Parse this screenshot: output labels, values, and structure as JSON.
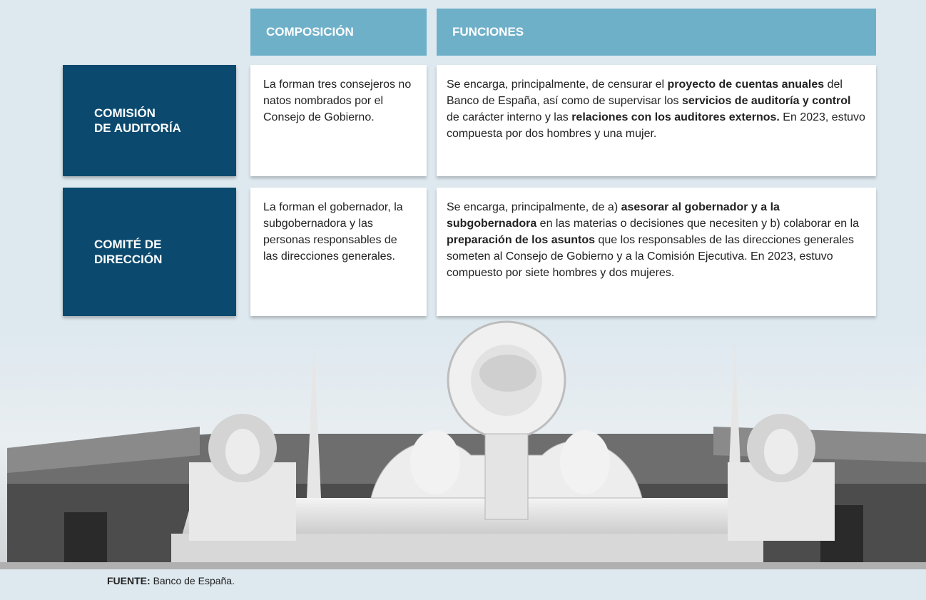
{
  "header": {
    "composition": "COMPOSICIÓN",
    "functions": "FUNCIONES"
  },
  "rows": [
    {
      "label": [
        "COMISIÓN",
        "DE AUDITORÍA"
      ],
      "composition": "La forman tres consejeros no natos nombrados por el Consejo de Gobierno.",
      "functions": [
        {
          "text": "Se encarga, principalmente, de censurar el ",
          "bold": false
        },
        {
          "text": "proyecto de cuentas anuales",
          "bold": true
        },
        {
          "text": " del Banco de España, así como de supervisar los ",
          "bold": false
        },
        {
          "text": "servicios de auditoría y control",
          "bold": true
        },
        {
          "text": " de carácter interno y las ",
          "bold": false
        },
        {
          "text": "relaciones con los auditores externos.",
          "bold": true
        },
        {
          "text": " En 2023, estuvo compuesta por dos hombres y una mujer.",
          "bold": false
        }
      ]
    },
    {
      "label": [
        "COMITÉ DE",
        "DIRECCIÓN"
      ],
      "composition": "La forman el gobernador, la subgobernadora y las personas responsables de las direcciones generales.",
      "functions": [
        {
          "text": "Se encarga, principalmente, de a) ",
          "bold": false
        },
        {
          "text": "asesorar al gobernador y a la subgobernadora",
          "bold": true
        },
        {
          "text": " en las materias o decisiones que necesiten y b) colaborar en la ",
          "bold": false
        },
        {
          "text": "preparación de los asuntos",
          "bold": true
        },
        {
          "text": " que los responsables de las direcciones generales someten al Consejo de Gobierno y a la Comisión Ejecutiva. En 2023, estuvo compuesto por siete hombres y dos mujeres.",
          "bold": false
        }
      ]
    }
  ],
  "source": {
    "label": "FUENTE:",
    "text": "Banco de España."
  }
}
